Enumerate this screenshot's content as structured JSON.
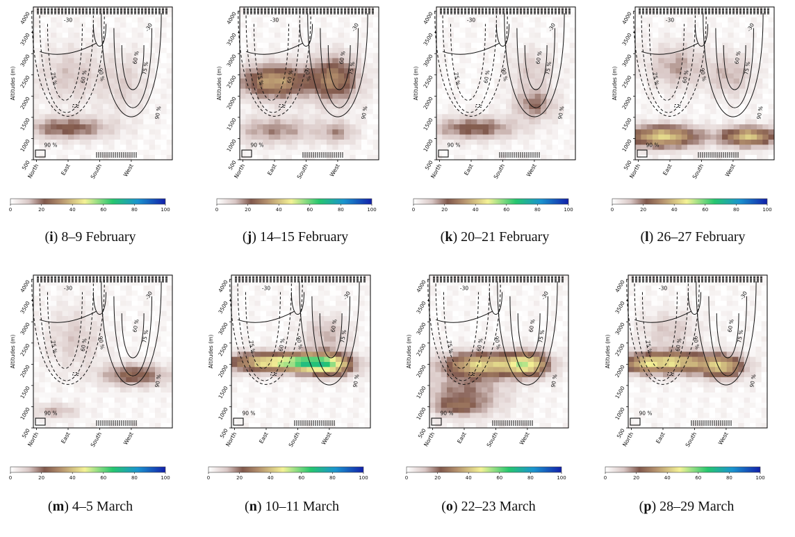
{
  "figure": {
    "panels": [
      {
        "letter": "i",
        "date": "8–9 February"
      },
      {
        "letter": "j",
        "date": "14–15 February"
      },
      {
        "letter": "k",
        "date": "20–21 February"
      },
      {
        "letter": "l",
        "date": "26–27 February"
      },
      {
        "letter": "m",
        "date": "4–5 March"
      },
      {
        "letter": "n",
        "date": "10–11 March"
      },
      {
        "letter": "o",
        "date": "22–23 March"
      },
      {
        "letter": "p",
        "date": "28–29 March"
      }
    ]
  },
  "chart_data": [
    {
      "type": "heatmap",
      "panel": "i",
      "ylabel": "Altitudes (m)",
      "x_categories": [
        "North",
        "East",
        "South",
        "West"
      ],
      "y_ticks": [
        500,
        1000,
        1500,
        2000,
        2500,
        3000,
        3500,
        4000
      ],
      "ylim": [
        500,
        4100
      ],
      "colorbar": {
        "range": [
          0,
          100
        ],
        "ticks": [
          0,
          20,
          40,
          60,
          80,
          100
        ]
      },
      "contour_labels": [
        "-30",
        "60 %",
        "75 %",
        "90 %"
      ],
      "blobs": [
        {
          "x": 1.0,
          "y": 1250,
          "sx": 0.9,
          "sy": 180,
          "v": 22
        },
        {
          "x": 1.1,
          "y": 2500,
          "sx": 0.7,
          "sy": 450,
          "v": 10
        },
        {
          "x": 2.8,
          "y": 2300,
          "sx": 0.5,
          "sy": 500,
          "v": 8
        }
      ]
    },
    {
      "type": "heatmap",
      "panel": "j",
      "ylabel": "Altitudes (m)",
      "x_categories": [
        "North",
        "East",
        "South",
        "West"
      ],
      "y_ticks": [
        500,
        1000,
        1500,
        2000,
        2500,
        3000,
        3500,
        4000
      ],
      "ylim": [
        500,
        4100
      ],
      "colorbar": {
        "range": [
          0,
          100
        ],
        "ticks": [
          0,
          20,
          40,
          60,
          80,
          100
        ]
      },
      "contour_labels": [
        "-30",
        "60 %",
        "75 %",
        "90 %"
      ],
      "blobs": [
        {
          "x": 1.0,
          "y": 2350,
          "sx": 0.75,
          "sy": 280,
          "v": 34
        },
        {
          "x": 2.9,
          "y": 2400,
          "sx": 0.55,
          "sy": 380,
          "v": 28
        },
        {
          "x": 1.0,
          "y": 1200,
          "sx": 0.9,
          "sy": 220,
          "v": 16
        },
        {
          "x": 3.0,
          "y": 1150,
          "sx": 0.4,
          "sy": 180,
          "v": 14
        }
      ]
    },
    {
      "type": "heatmap",
      "panel": "k",
      "ylabel": "Altitudes (m)",
      "x_categories": [
        "North",
        "East",
        "South",
        "West"
      ],
      "y_ticks": [
        500,
        1000,
        1500,
        2000,
        2500,
        3000,
        3500,
        4000
      ],
      "ylim": [
        500,
        4100
      ],
      "colorbar": {
        "range": [
          0,
          100
        ],
        "ticks": [
          0,
          20,
          40,
          60,
          80,
          100
        ]
      },
      "contour_labels": [
        "-30",
        "60 %",
        "75 %",
        "90 %"
      ],
      "blobs": [
        {
          "x": 1.1,
          "y": 1250,
          "sx": 0.9,
          "sy": 180,
          "v": 22
        },
        {
          "x": 3.0,
          "y": 1800,
          "sx": 0.45,
          "sy": 250,
          "v": 18
        },
        {
          "x": 2.9,
          "y": 2600,
          "sx": 0.5,
          "sy": 350,
          "v": 9
        }
      ]
    },
    {
      "type": "heatmap",
      "panel": "l",
      "ylabel": "Altitudes (m)",
      "x_categories": [
        "North",
        "East",
        "South",
        "West"
      ],
      "y_ticks": [
        500,
        1000,
        1500,
        2000,
        2500,
        3000,
        3500,
        4000
      ],
      "ylim": [
        500,
        4100
      ],
      "colorbar": {
        "range": [
          0,
          100
        ],
        "ticks": [
          0,
          20,
          40,
          60,
          80,
          100
        ]
      },
      "contour_labels": [
        "-30",
        "60 %",
        "75 %",
        "90 %"
      ],
      "blobs": [
        {
          "x": 0.8,
          "y": 1050,
          "sx": 0.8,
          "sy": 180,
          "v": 42
        },
        {
          "x": 3.5,
          "y": 1050,
          "sx": 0.6,
          "sy": 160,
          "v": 40
        },
        {
          "x": 1.2,
          "y": 2700,
          "sx": 0.6,
          "sy": 350,
          "v": 14
        },
        {
          "x": 2.9,
          "y": 2500,
          "sx": 0.5,
          "sy": 350,
          "v": 12
        }
      ]
    },
    {
      "type": "heatmap",
      "panel": "m",
      "ylabel": "Altitudes (m)",
      "x_categories": [
        "North",
        "East",
        "South",
        "West"
      ],
      "y_ticks": [
        500,
        1000,
        1500,
        2000,
        2500,
        3000,
        3500,
        4000
      ],
      "ylim": [
        500,
        4100
      ],
      "colorbar": {
        "range": [
          0,
          100
        ],
        "ticks": [
          0,
          20,
          40,
          60,
          80,
          100
        ]
      },
      "contour_labels": [
        "-30",
        "60 %",
        "75 %",
        "90 %"
      ],
      "blobs": [
        {
          "x": 3.1,
          "y": 1750,
          "sx": 0.7,
          "sy": 180,
          "v": 24
        },
        {
          "x": 1.2,
          "y": 2600,
          "sx": 0.6,
          "sy": 500,
          "v": 9
        },
        {
          "x": 0.6,
          "y": 900,
          "sx": 0.5,
          "sy": 120,
          "v": 12
        }
      ]
    },
    {
      "type": "heatmap",
      "panel": "n",
      "ylabel": "Altitudes (m)",
      "x_categories": [
        "North",
        "East",
        "South",
        "West"
      ],
      "y_ticks": [
        500,
        1000,
        1500,
        2000,
        2500,
        3000,
        3500,
        4000
      ],
      "ylim": [
        500,
        4100
      ],
      "colorbar": {
        "range": [
          0,
          100
        ],
        "ticks": [
          0,
          20,
          40,
          60,
          80,
          100
        ]
      },
      "contour_labels": [
        "-30",
        "60 %",
        "75 %",
        "90 %"
      ],
      "blobs": [
        {
          "x": 1.1,
          "y": 2050,
          "sx": 0.9,
          "sy": 160,
          "v": 44
        },
        {
          "x": 3.0,
          "y": 2000,
          "sx": 0.55,
          "sy": 180,
          "v": 48
        },
        {
          "x": 2.2,
          "y": 2050,
          "sx": 0.5,
          "sy": 140,
          "v": 30
        },
        {
          "x": 2.9,
          "y": 2700,
          "sx": 0.5,
          "sy": 300,
          "v": 12
        }
      ]
    },
    {
      "type": "heatmap",
      "panel": "o",
      "ylabel": "Altitudes (m)",
      "x_categories": [
        "North",
        "East",
        "South",
        "West"
      ],
      "y_ticks": [
        500,
        1000,
        1500,
        2000,
        2500,
        3000,
        3500,
        4000
      ],
      "ylim": [
        500,
        4100
      ],
      "colorbar": {
        "range": [
          0,
          100
        ],
        "ticks": [
          0,
          20,
          40,
          60,
          80,
          100
        ]
      },
      "contour_labels": [
        "-30",
        "60 %",
        "75 %",
        "90 %"
      ],
      "blobs": [
        {
          "x": 1.5,
          "y": 2000,
          "sx": 0.8,
          "sy": 200,
          "v": 40
        },
        {
          "x": 3.0,
          "y": 2000,
          "sx": 0.5,
          "sy": 200,
          "v": 44
        },
        {
          "x": 1.0,
          "y": 1300,
          "sx": 0.9,
          "sy": 350,
          "v": 18
        },
        {
          "x": 0.8,
          "y": 1000,
          "sx": 0.5,
          "sy": 120,
          "v": 14
        }
      ]
    },
    {
      "type": "heatmap",
      "panel": "p",
      "ylabel": "Altitudes (m)",
      "x_categories": [
        "North",
        "East",
        "South",
        "West"
      ],
      "y_ticks": [
        500,
        1000,
        1500,
        2000,
        2500,
        3000,
        3500,
        4000
      ],
      "ylim": [
        500,
        4100
      ],
      "colorbar": {
        "range": [
          0,
          100
        ],
        "ticks": [
          0,
          20,
          40,
          60,
          80,
          100
        ]
      },
      "contour_labels": [
        "-30",
        "60 %",
        "75 %",
        "90 %"
      ],
      "blobs": [
        {
          "x": 1.3,
          "y": 2050,
          "sx": 0.8,
          "sy": 180,
          "v": 42
        },
        {
          "x": 2.9,
          "y": 1950,
          "sx": 0.5,
          "sy": 200,
          "v": 36
        },
        {
          "x": 0.3,
          "y": 2000,
          "sx": 0.4,
          "sy": 150,
          "v": 22
        },
        {
          "x": 1.2,
          "y": 2800,
          "sx": 0.6,
          "sy": 300,
          "v": 10
        }
      ]
    }
  ]
}
